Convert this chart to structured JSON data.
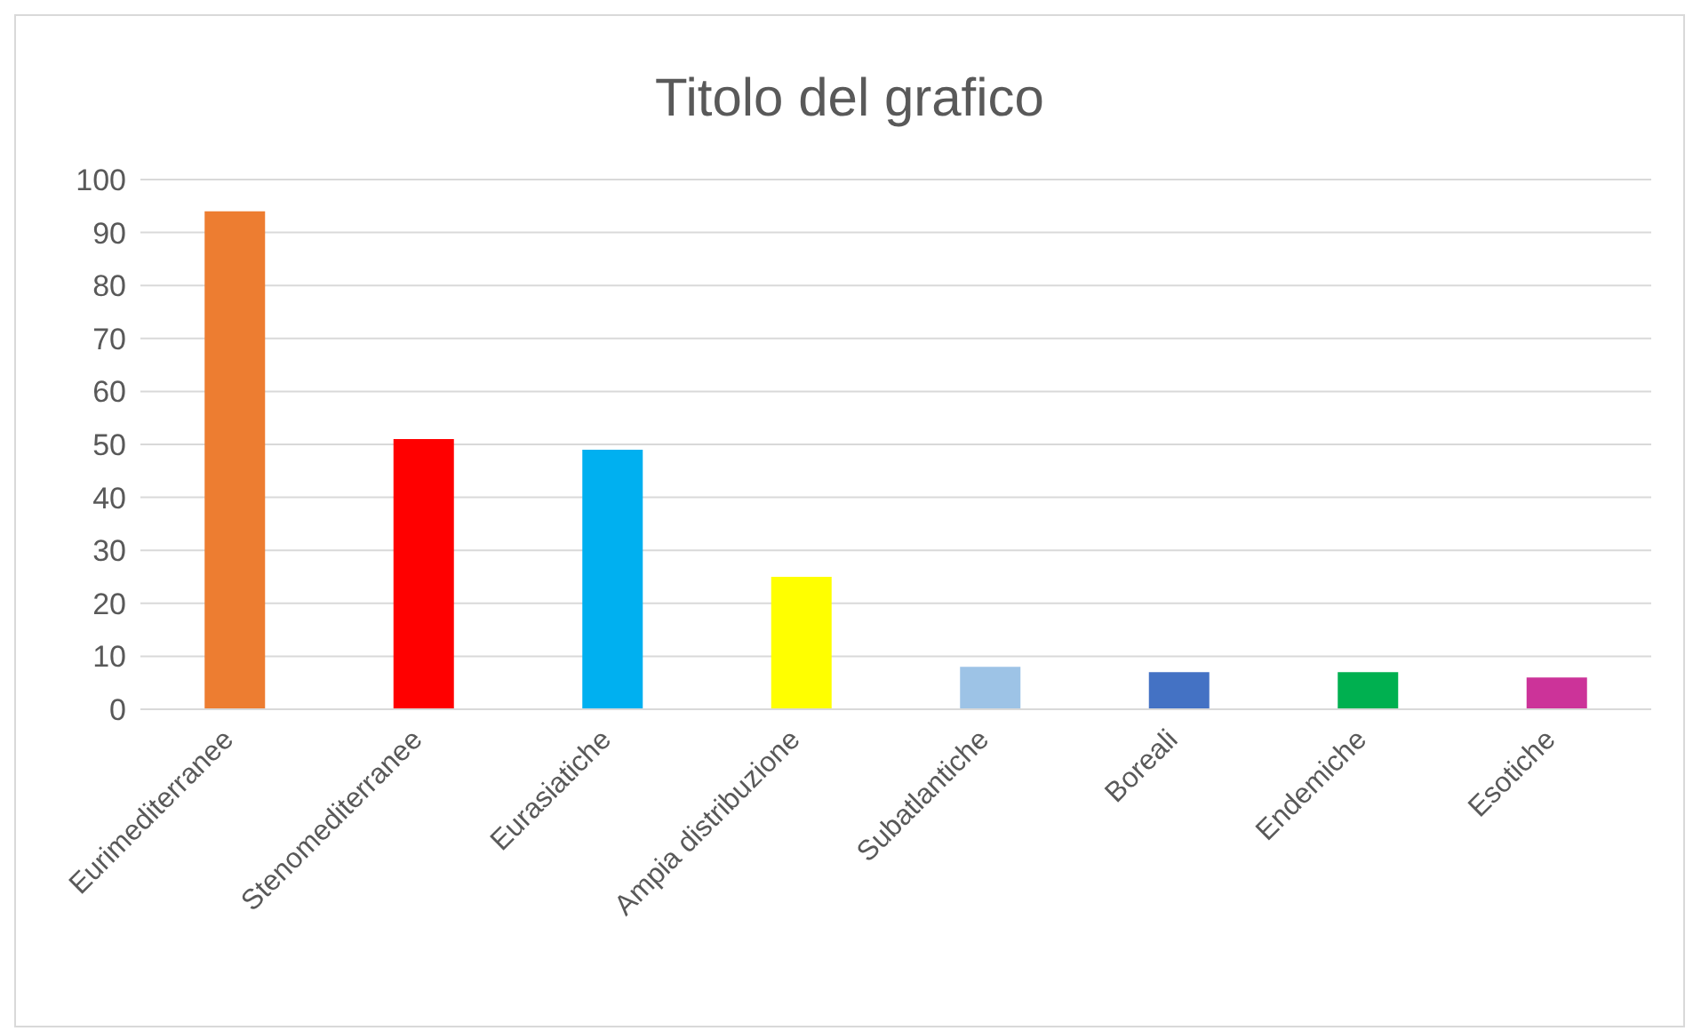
{
  "chart_data": {
    "type": "bar",
    "title": "Titolo del grafico",
    "categories": [
      "Eurimediterranee",
      "Stenomediterranee",
      "Eurasiatiche",
      "Ampia distribuzione",
      "Subatlantiche",
      "Boreali",
      "Endemiche",
      "Esotiche"
    ],
    "values": [
      94,
      51,
      49,
      25,
      8,
      7,
      7,
      6
    ],
    "colors": [
      "#ed7d31",
      "#ff0000",
      "#00b0f0",
      "#ffff00",
      "#9dc3e6",
      "#4472c4",
      "#00b050",
      "#cc3399"
    ],
    "ylim": [
      0,
      100
    ],
    "yticks": [
      0,
      10,
      20,
      30,
      40,
      50,
      60,
      70,
      80,
      90,
      100
    ],
    "grid": "y"
  }
}
